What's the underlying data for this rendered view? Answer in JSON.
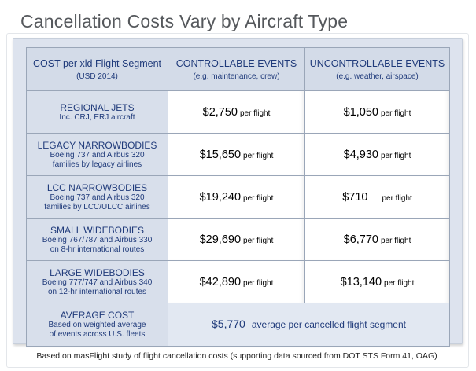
{
  "title": "Cancellation Costs Vary by Aircraft Type",
  "header": {
    "col1_main": "COST per xld Flight Segment",
    "col1_sub": "(USD 2014)",
    "col2_main": "CONTROLLABLE EVENTS",
    "col2_sub": "(e.g. maintenance, crew)",
    "col3_main": "UNCONTROLLABLE EVENTS",
    "col3_sub": "(e.g. weather, airspace)"
  },
  "rows": [
    {
      "name": "REGIONAL JETS",
      "desc1": "Inc. CRJ, ERJ aircraft",
      "desc2": "",
      "controllable": "$2,750",
      "uncontrollable": "$1,050"
    },
    {
      "name": "LEGACY NARROWBODIES",
      "desc1": "Boeing 737 and Airbus 320",
      "desc2": "families by legacy airlines",
      "controllable": "$15,650",
      "uncontrollable": "$4,930"
    },
    {
      "name": "LCC NARROWBODIES",
      "desc1": "Boeing 737 and Airbus 320",
      "desc2": "families by LCC/ULCC airlines",
      "controllable": "$19,240",
      "uncontrollable": "$710"
    },
    {
      "name": "SMALL WIDEBODIES",
      "desc1": "Boeing 767/787 and Airbus 330",
      "desc2": "on 8-hr international routes",
      "controllable": "$29,690",
      "uncontrollable": "$6,770"
    },
    {
      "name": "LARGE WIDEBODIES",
      "desc1": "Boeing 777/747 and Airbus 340",
      "desc2": "on 12-hr international routes",
      "controllable": "$42,890",
      "uncontrollable": "$13,140"
    }
  ],
  "unit_label": "per flight",
  "average": {
    "name": "AVERAGE COST",
    "desc1": "Based on weighted average",
    "desc2": "of events across U.S. fleets",
    "amount": "$5,770",
    "text": "average per cancelled flight segment"
  },
  "footer": "Based on masFlight study of flight cancellation costs (supporting data sourced from DOT STS Form 41, OAG)"
}
